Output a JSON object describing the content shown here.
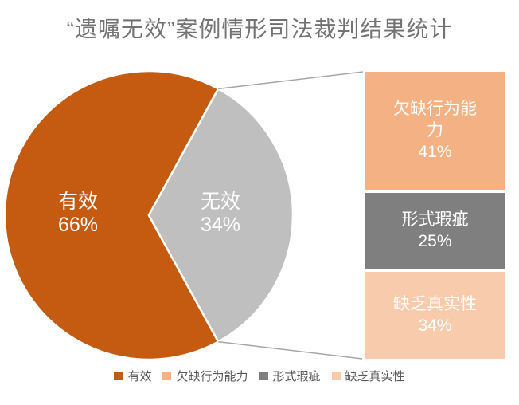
{
  "title": "“遗嘱无效”案例情形司法裁判结果统计",
  "chart_data": {
    "type": "pie",
    "subtype": "pie-with-breakdown-bar",
    "title": "“遗嘱无效”案例情形司法裁判结果统计",
    "slices": [
      {
        "label": "有效",
        "value": 66,
        "pct": "66%",
        "color": "#C55A11"
      },
      {
        "label": "无效",
        "value": 34,
        "pct": "34%",
        "color": "#BFBFBF"
      }
    ],
    "breakdown_of": "无效",
    "breakdown": [
      {
        "label": "欠缺行为能力",
        "value": 41,
        "pct": "41%",
        "color": "#F4B183"
      },
      {
        "label": "形式瑕疵",
        "value": 25,
        "pct": "25%",
        "color": "#7F7F7F"
      },
      {
        "label": "缺乏真实性",
        "value": 34,
        "pct": "34%",
        "color": "#F8CBAD"
      }
    ],
    "legend": [
      {
        "label": "有效",
        "color": "#C55A11"
      },
      {
        "label": "欠缺行为能力",
        "color": "#F4B183"
      },
      {
        "label": "形式瑕疵",
        "color": "#7F7F7F"
      },
      {
        "label": "缺乏真实性",
        "color": "#F8CBAD"
      }
    ],
    "legend_position": "bottom",
    "colors": {
      "background": "#FFFFFF",
      "title_text": "#737373",
      "legend_text": "#595959",
      "data_label_text": "#FFFFFF",
      "connector_line": "#A6A6A6",
      "slice_border": "#FFFFFF"
    }
  }
}
